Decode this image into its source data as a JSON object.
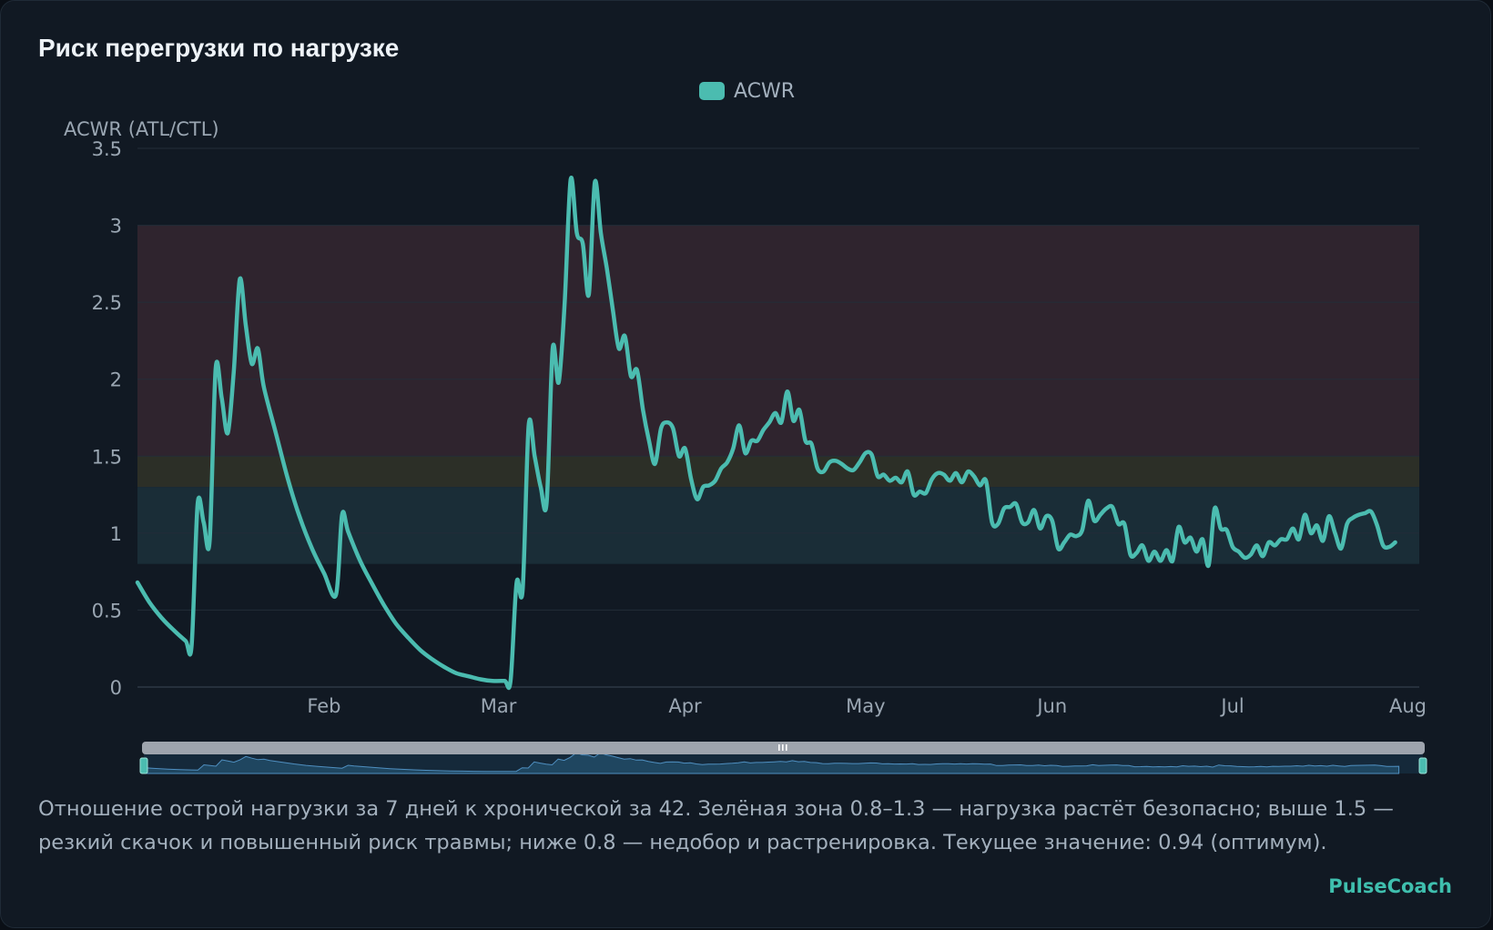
{
  "colors": {
    "background": "#111923",
    "line": "#4bbcb0",
    "zone_danger": "#2f242e",
    "zone_caution": "#2c2f27",
    "zone_optimal": "#1a2d37",
    "grid": "#232d38",
    "text": "#9aa6b2",
    "brand": "#3fbfae",
    "slider": "#9ea4ad"
  },
  "card": {
    "title": "Риск перегрузки по нагрузке",
    "description": "Отношение острой нагрузки за 7 дней к хронической за 42. Зелёная зона 0.8–1.3 — нагрузка растёт безопасно; выше 1.5 — резкий скачок и повышенный риск травмы; ниже 0.8 — недобор и растренировка. Текущее значение: 0.94 (оптимум).",
    "brand": "PulseCoach"
  },
  "chart_data": {
    "type": "line",
    "ylabel": "ACWR (ATL/CTL)",
    "ylim": [
      0,
      3.5
    ],
    "yticks": [
      "0",
      "0.5",
      "1",
      "1.5",
      "2",
      "2.5",
      "3",
      "3.5"
    ],
    "x_start": "2024-01-01",
    "x_end": "2024-08-01",
    "xticks": [
      {
        "label": "Feb",
        "date": "2024-02-01"
      },
      {
        "label": "Mar",
        "date": "2024-03-01"
      },
      {
        "label": "Apr",
        "date": "2024-04-01"
      },
      {
        "label": "May",
        "date": "2024-05-01"
      },
      {
        "label": "Jun",
        "date": "2024-06-01"
      },
      {
        "label": "Jul",
        "date": "2024-07-01"
      },
      {
        "label": "Aug",
        "date": "2024-08-01"
      }
    ],
    "legend": {
      "position": "top-center",
      "entries": [
        "ACWR"
      ]
    },
    "grid": true,
    "zones": [
      {
        "name": "danger",
        "from": 1.5,
        "to": 3.0
      },
      {
        "name": "caution",
        "from": 1.3,
        "to": 1.5
      },
      {
        "name": "optimal",
        "from": 0.8,
        "to": 1.3
      }
    ],
    "series": [
      {
        "name": "ACWR",
        "points": [
          [
            "2024-01-01",
            0.68
          ],
          [
            "2024-01-03",
            0.55
          ],
          [
            "2024-01-05",
            0.45
          ],
          [
            "2024-01-07",
            0.37
          ],
          [
            "2024-01-09",
            0.3
          ],
          [
            "2024-01-10",
            0.27
          ],
          [
            "2024-01-11",
            1.19
          ],
          [
            "2024-01-12",
            1.07
          ],
          [
            "2024-01-13",
            0.95
          ],
          [
            "2024-01-14",
            2.07
          ],
          [
            "2024-01-15",
            1.88
          ],
          [
            "2024-01-16",
            1.65
          ],
          [
            "2024-01-17",
            2.05
          ],
          [
            "2024-01-18",
            2.65
          ],
          [
            "2024-01-19",
            2.35
          ],
          [
            "2024-01-20",
            2.1
          ],
          [
            "2024-01-21",
            2.2
          ],
          [
            "2024-01-22",
            1.95
          ],
          [
            "2024-01-24",
            1.65
          ],
          [
            "2024-01-26",
            1.35
          ],
          [
            "2024-01-28",
            1.1
          ],
          [
            "2024-01-30",
            0.9
          ],
          [
            "2024-02-01",
            0.74
          ],
          [
            "2024-02-03",
            0.6
          ],
          [
            "2024-02-04",
            1.12
          ],
          [
            "2024-02-05",
            1.01
          ],
          [
            "2024-02-07",
            0.82
          ],
          [
            "2024-02-09",
            0.67
          ],
          [
            "2024-02-11",
            0.53
          ],
          [
            "2024-02-13",
            0.41
          ],
          [
            "2024-02-15",
            0.32
          ],
          [
            "2024-02-17",
            0.24
          ],
          [
            "2024-02-19",
            0.18
          ],
          [
            "2024-02-21",
            0.13
          ],
          [
            "2024-02-23",
            0.09
          ],
          [
            "2024-02-25",
            0.07
          ],
          [
            "2024-02-27",
            0.05
          ],
          [
            "2024-02-29",
            0.04
          ],
          [
            "2024-03-02",
            0.04
          ],
          [
            "2024-03-03",
            0.04
          ],
          [
            "2024-03-04",
            0.68
          ],
          [
            "2024-03-05",
            0.63
          ],
          [
            "2024-03-06",
            1.7
          ],
          [
            "2024-03-07",
            1.5
          ],
          [
            "2024-03-08",
            1.3
          ],
          [
            "2024-03-09",
            1.2
          ],
          [
            "2024-03-10",
            2.2
          ],
          [
            "2024-03-11",
            1.98
          ],
          [
            "2024-03-12",
            2.5
          ],
          [
            "2024-03-13",
            3.3
          ],
          [
            "2024-03-14",
            2.95
          ],
          [
            "2024-03-15",
            2.88
          ],
          [
            "2024-03-16",
            2.55
          ],
          [
            "2024-03-17",
            3.28
          ],
          [
            "2024-03-18",
            2.95
          ],
          [
            "2024-03-19",
            2.72
          ],
          [
            "2024-03-20",
            2.45
          ],
          [
            "2024-03-21",
            2.2
          ],
          [
            "2024-03-22",
            2.28
          ],
          [
            "2024-03-23",
            2.02
          ],
          [
            "2024-03-24",
            2.06
          ],
          [
            "2024-03-25",
            1.8
          ],
          [
            "2024-03-26",
            1.6
          ],
          [
            "2024-03-27",
            1.45
          ],
          [
            "2024-03-28",
            1.68
          ],
          [
            "2024-03-29",
            1.72
          ],
          [
            "2024-03-30",
            1.68
          ],
          [
            "2024-03-31",
            1.5
          ],
          [
            "2024-04-01",
            1.55
          ],
          [
            "2024-04-02",
            1.35
          ],
          [
            "2024-04-03",
            1.22
          ],
          [
            "2024-04-04",
            1.3
          ],
          [
            "2024-04-05",
            1.31
          ],
          [
            "2024-04-06",
            1.34
          ],
          [
            "2024-04-07",
            1.42
          ],
          [
            "2024-04-08",
            1.46
          ],
          [
            "2024-04-09",
            1.55
          ],
          [
            "2024-04-10",
            1.7
          ],
          [
            "2024-04-11",
            1.52
          ],
          [
            "2024-04-12",
            1.6
          ],
          [
            "2024-04-13",
            1.6
          ],
          [
            "2024-04-14",
            1.67
          ],
          [
            "2024-04-15",
            1.72
          ],
          [
            "2024-04-16",
            1.78
          ],
          [
            "2024-04-17",
            1.72
          ],
          [
            "2024-04-18",
            1.92
          ],
          [
            "2024-04-19",
            1.73
          ],
          [
            "2024-04-20",
            1.8
          ],
          [
            "2024-04-21",
            1.6
          ],
          [
            "2024-04-22",
            1.58
          ],
          [
            "2024-04-23",
            1.42
          ],
          [
            "2024-04-24",
            1.4
          ],
          [
            "2024-04-25",
            1.46
          ],
          [
            "2024-04-26",
            1.47
          ],
          [
            "2024-04-27",
            1.45
          ],
          [
            "2024-04-28",
            1.42
          ],
          [
            "2024-04-29",
            1.41
          ],
          [
            "2024-04-30",
            1.46
          ],
          [
            "2024-05-01",
            1.52
          ],
          [
            "2024-05-02",
            1.51
          ],
          [
            "2024-05-03",
            1.37
          ],
          [
            "2024-05-04",
            1.38
          ],
          [
            "2024-05-05",
            1.34
          ],
          [
            "2024-05-06",
            1.36
          ],
          [
            "2024-05-07",
            1.33
          ],
          [
            "2024-05-08",
            1.4
          ],
          [
            "2024-05-09",
            1.25
          ],
          [
            "2024-05-10",
            1.27
          ],
          [
            "2024-05-11",
            1.26
          ],
          [
            "2024-05-12",
            1.35
          ],
          [
            "2024-05-13",
            1.39
          ],
          [
            "2024-05-14",
            1.38
          ],
          [
            "2024-05-15",
            1.34
          ],
          [
            "2024-05-16",
            1.39
          ],
          [
            "2024-05-17",
            1.33
          ],
          [
            "2024-05-18",
            1.4
          ],
          [
            "2024-05-19",
            1.37
          ],
          [
            "2024-05-20",
            1.31
          ],
          [
            "2024-05-21",
            1.34
          ],
          [
            "2024-05-22",
            1.07
          ],
          [
            "2024-05-23",
            1.06
          ],
          [
            "2024-05-24",
            1.16
          ],
          [
            "2024-05-25",
            1.17
          ],
          [
            "2024-05-26",
            1.19
          ],
          [
            "2024-05-27",
            1.07
          ],
          [
            "2024-05-28",
            1.07
          ],
          [
            "2024-05-29",
            1.15
          ],
          [
            "2024-05-30",
            1.03
          ],
          [
            "2024-05-31",
            1.11
          ],
          [
            "2024-06-01",
            1.08
          ],
          [
            "2024-06-02",
            0.9
          ],
          [
            "2024-06-03",
            0.94
          ],
          [
            "2024-06-04",
            0.99
          ],
          [
            "2024-06-05",
            0.98
          ],
          [
            "2024-06-06",
            1.02
          ],
          [
            "2024-06-07",
            1.21
          ],
          [
            "2024-06-08",
            1.08
          ],
          [
            "2024-06-09",
            1.12
          ],
          [
            "2024-06-10",
            1.16
          ],
          [
            "2024-06-11",
            1.17
          ],
          [
            "2024-06-12",
            1.06
          ],
          [
            "2024-06-13",
            1.06
          ],
          [
            "2024-06-14",
            0.86
          ],
          [
            "2024-06-15",
            0.87
          ],
          [
            "2024-06-16",
            0.92
          ],
          [
            "2024-06-17",
            0.82
          ],
          [
            "2024-06-18",
            0.88
          ],
          [
            "2024-06-19",
            0.82
          ],
          [
            "2024-06-20",
            0.89
          ],
          [
            "2024-06-21",
            0.82
          ],
          [
            "2024-06-22",
            1.04
          ],
          [
            "2024-06-23",
            0.94
          ],
          [
            "2024-06-24",
            0.97
          ],
          [
            "2024-06-25",
            0.88
          ],
          [
            "2024-06-26",
            0.96
          ],
          [
            "2024-06-27",
            0.79
          ],
          [
            "2024-06-28",
            1.16
          ],
          [
            "2024-06-29",
            1.03
          ],
          [
            "2024-06-30",
            1.02
          ],
          [
            "2024-07-01",
            0.91
          ],
          [
            "2024-07-02",
            0.88
          ],
          [
            "2024-07-03",
            0.84
          ],
          [
            "2024-07-04",
            0.86
          ],
          [
            "2024-07-05",
            0.92
          ],
          [
            "2024-07-06",
            0.85
          ],
          [
            "2024-07-07",
            0.94
          ],
          [
            "2024-07-08",
            0.92
          ],
          [
            "2024-07-09",
            0.96
          ],
          [
            "2024-07-10",
            0.96
          ],
          [
            "2024-07-11",
            1.03
          ],
          [
            "2024-07-12",
            0.96
          ],
          [
            "2024-07-13",
            1.12
          ],
          [
            "2024-07-14",
            1.0
          ],
          [
            "2024-07-15",
            1.05
          ],
          [
            "2024-07-16",
            0.95
          ],
          [
            "2024-07-17",
            1.11
          ],
          [
            "2024-07-18",
            1.0
          ],
          [
            "2024-07-19",
            0.9
          ],
          [
            "2024-07-20",
            1.06
          ],
          [
            "2024-07-21",
            1.1
          ],
          [
            "2024-07-22",
            1.12
          ],
          [
            "2024-07-23",
            1.13
          ],
          [
            "2024-07-24",
            1.14
          ],
          [
            "2024-07-25",
            1.05
          ],
          [
            "2024-07-26",
            0.92
          ],
          [
            "2024-07-27",
            0.91
          ],
          [
            "2024-07-28",
            0.94
          ]
        ]
      }
    ]
  }
}
